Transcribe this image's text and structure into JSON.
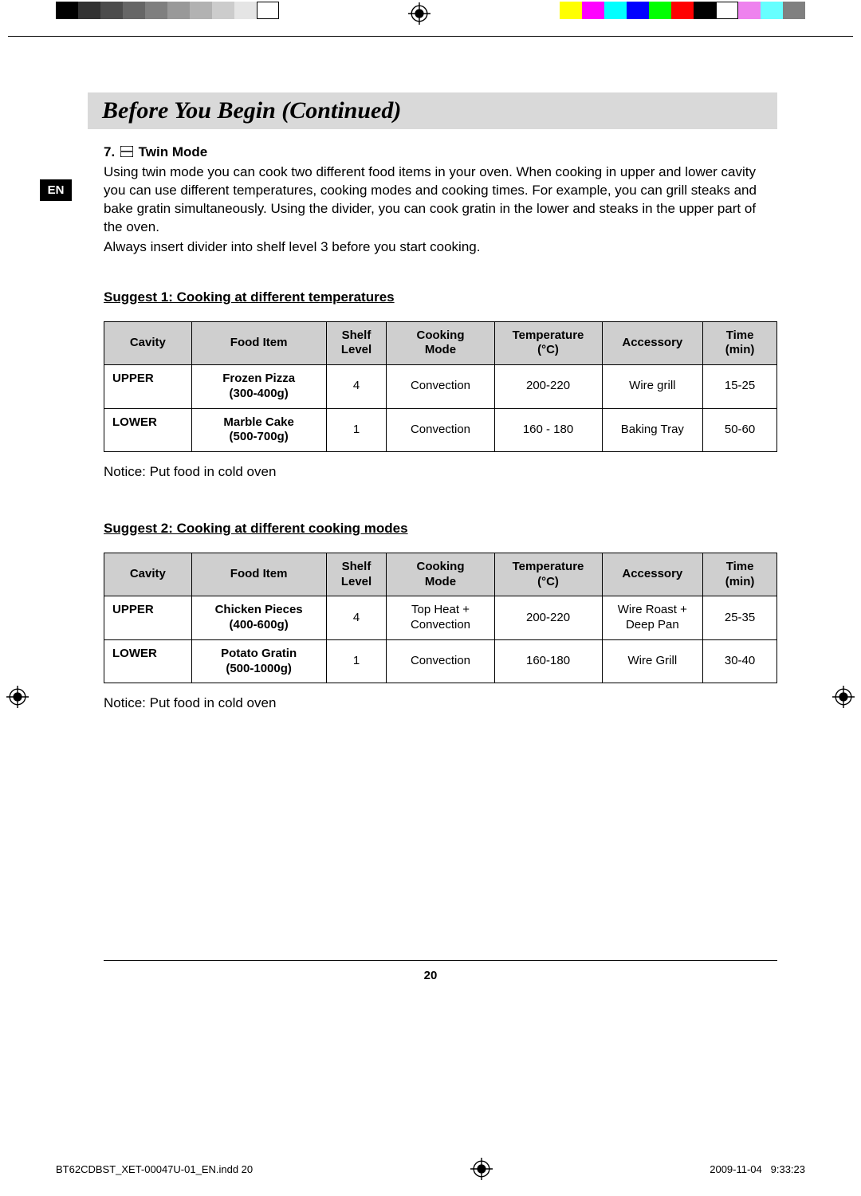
{
  "colorbar_left": [
    "#000000",
    "#323232",
    "#4c4c4c",
    "#666666",
    "#7f7f7f",
    "#999999",
    "#b2b2b2",
    "#cccccc",
    "#e5e5e5",
    "#ffffff"
  ],
  "colorbar_right": [
    "#ffff00",
    "#ff00ff",
    "#00ffff",
    "#0000ff",
    "#00ff00",
    "#ff0000",
    "#000000",
    "#ffffff",
    "#ee82ee",
    "#66ffff",
    "#808080"
  ],
  "header_title": "Before You Begin (Continued)",
  "lang_tab": "EN",
  "section": {
    "number": "7.",
    "title": "Twin Mode",
    "paragraph1": "Using twin mode you can cook two different food items in your oven. When cooking in upper and lower cavity you can use different temperatures, cooking modes and cooking times. For example, you can grill steaks and bake gratin simultaneously. Using the divider, you can cook gratin in the lower and steaks in the upper part of the oven.",
    "paragraph2": "Always insert divider into shelf level 3 before you start cooking."
  },
  "suggest1": {
    "heading": "Suggest 1:  Cooking at different temperatures",
    "columns": [
      "Cavity",
      "Food Item",
      "Shelf Level",
      "Cooking Mode",
      "Temperature (°C)",
      "Accessory",
      "Time (min)"
    ],
    "rows": [
      {
        "cavity": "UPPER",
        "food": "Frozen Pizza",
        "weight": "(300-400g)",
        "shelf": "4",
        "mode": "Convection",
        "temp": "200-220",
        "acc": "Wire grill",
        "time": "15-25"
      },
      {
        "cavity": "LOWER",
        "food": "Marble Cake",
        "weight": "(500-700g)",
        "shelf": "1",
        "mode": "Convection",
        "temp": "160 - 180",
        "acc": "Baking Tray",
        "time": "50-60"
      }
    ],
    "notice": "Notice: Put food in cold oven"
  },
  "suggest2": {
    "heading": "Suggest 2:  Cooking at different cooking modes",
    "columns": [
      "Cavity",
      "Food Item",
      "Shelf Level",
      "Cooking Mode",
      "Temperature (°C)",
      "Accessory",
      "Time (min)"
    ],
    "rows": [
      {
        "cavity": "UPPER",
        "food": "Chicken Pieces",
        "weight": "(400-600g)",
        "shelf": "4",
        "mode": "Top Heat + Convection",
        "temp": "200-220",
        "acc": "Wire Roast + Deep Pan",
        "time": "25-35"
      },
      {
        "cavity": "LOWER",
        "food": "Potato Gratin",
        "weight": "(500-1000g)",
        "shelf": "1",
        "mode": "Convection",
        "temp": "160-180",
        "acc": "Wire Grill",
        "time": "30-40"
      }
    ],
    "notice": "Notice: Put food in cold oven"
  },
  "page_number": "20",
  "footer": {
    "file": "BT62CDBST_XET-00047U-01_EN.indd   20",
    "date": "2009-11-04",
    "time": "9:33:23"
  },
  "colors": {
    "header_bg": "#d9d9d9",
    "table_header_bg": "#cfcfcf",
    "text": "#000000",
    "bg": "#ffffff"
  },
  "column_widths_pct": [
    13,
    20,
    9,
    16,
    16,
    15,
    11
  ]
}
